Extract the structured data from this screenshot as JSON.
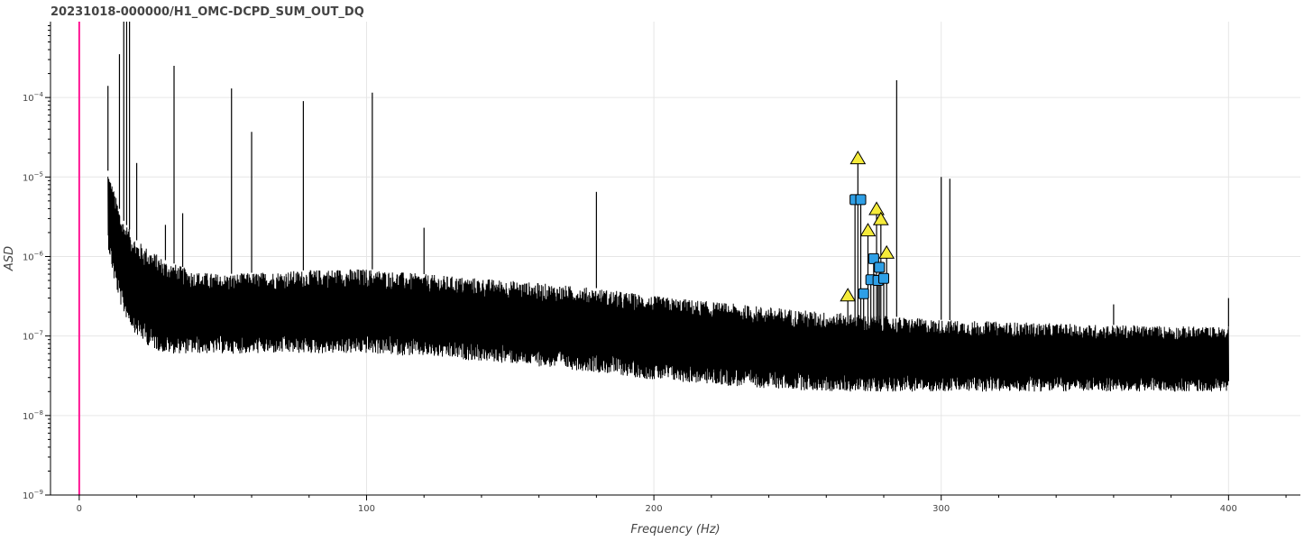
{
  "chart_data": {
    "type": "line",
    "title": "20231018-000000/H1_OMC-DCPD_SUM_OUT_DQ",
    "xlabel": "Frequency (Hz)",
    "ylabel": "ASD",
    "xlim": [
      -10,
      425
    ],
    "ylim": [
      1e-09,
      0.0009
    ],
    "y_scale": "log",
    "x_ticks": [
      {
        "value": 0,
        "label": "0"
      },
      {
        "value": 100,
        "label": "100"
      },
      {
        "value": 200,
        "label": "200"
      },
      {
        "value": 300,
        "label": "300"
      },
      {
        "value": 400,
        "label": "400"
      }
    ],
    "y_ticks": [
      {
        "value": 1e-09,
        "base": "10",
        "exp": "−9"
      },
      {
        "value": 1e-08,
        "base": "10",
        "exp": "−8"
      },
      {
        "value": 1e-07,
        "base": "10",
        "exp": "−7"
      },
      {
        "value": 1e-06,
        "base": "10",
        "exp": "−6"
      },
      {
        "value": 1e-05,
        "base": "10",
        "exp": "−5"
      },
      {
        "value": 0.0001,
        "base": "10",
        "exp": "−4"
      }
    ],
    "grid": true,
    "vertical_marker": {
      "x": 0,
      "color": "#ff1493"
    },
    "series": [
      {
        "color": "#000000",
        "x_range": [
          10,
          400
        ],
        "envelope_hz": [
          10,
          12,
          15,
          20,
          25,
          30,
          40,
          50,
          70,
          90,
          100,
          120,
          150,
          180,
          200,
          230,
          260,
          300,
          350,
          400
        ],
        "envelope_upper": [
          1.2e-05,
          7e-06,
          3e-06,
          1.6e-06,
          1.2e-06,
          9e-07,
          6.5e-07,
          6e-07,
          6.5e-07,
          7e-07,
          7e-07,
          6e-07,
          5e-07,
          4e-07,
          3.2e-07,
          2.5e-07,
          2e-07,
          1.6e-07,
          1.4e-07,
          1.3e-07
        ],
        "envelope_lower": [
          1.3e-06,
          5e-07,
          2e-07,
          1e-07,
          7e-08,
          6e-08,
          6e-08,
          6e-08,
          6e-08,
          6e-08,
          6e-08,
          5.5e-08,
          4.5e-08,
          3.5e-08,
          2.8e-08,
          2.3e-08,
          2e-08,
          2e-08,
          2e-08,
          2e-08
        ],
        "peaks": [
          {
            "x": 10,
            "y": 0.00014
          },
          {
            "x": 14,
            "y": 0.00035
          },
          {
            "x": 15.5,
            "y": 0.0009
          },
          {
            "x": 16.5,
            "y": 0.0009
          },
          {
            "x": 17.5,
            "y": 0.0009
          },
          {
            "x": 20,
            "y": 1.5e-05
          },
          {
            "x": 30,
            "y": 2.5e-06
          },
          {
            "x": 33,
            "y": 0.00025
          },
          {
            "x": 36,
            "y": 3.5e-06
          },
          {
            "x": 53,
            "y": 0.00013
          },
          {
            "x": 60,
            "y": 3.7e-05
          },
          {
            "x": 78,
            "y": 9e-05
          },
          {
            "x": 102,
            "y": 0.000115
          },
          {
            "x": 120,
            "y": 2.3e-06
          },
          {
            "x": 180,
            "y": 6.5e-06
          },
          {
            "x": 284.5,
            "y": 0.000165
          },
          {
            "x": 300,
            "y": 1e-05
          },
          {
            "x": 303,
            "y": 9.5e-06
          },
          {
            "x": 360,
            "y": 2.5e-07
          },
          {
            "x": 400,
            "y": 3e-07
          }
        ]
      }
    ],
    "markers": {
      "triangles": {
        "fill": "#f5eb3a",
        "points": [
          {
            "x": 267.5,
            "y": 3.2e-07
          },
          {
            "x": 271,
            "y": 1.7e-05
          },
          {
            "x": 274.5,
            "y": 2.1e-06
          },
          {
            "x": 277.5,
            "y": 3.9e-06
          },
          {
            "x": 279,
            "y": 2.9e-06
          },
          {
            "x": 281,
            "y": 1.1e-06
          }
        ]
      },
      "squares": {
        "fill": "#2e9fe6",
        "points": [
          {
            "x": 270,
            "y": 5.2e-06
          },
          {
            "x": 272,
            "y": 5.2e-06
          },
          {
            "x": 273,
            "y": 3.4e-07
          },
          {
            "x": 275.5,
            "y": 5.1e-07
          },
          {
            "x": 276.5,
            "y": 9.4e-07
          },
          {
            "x": 278,
            "y": 5e-07
          },
          {
            "x": 278.5,
            "y": 7.3e-07
          },
          {
            "x": 280,
            "y": 5.3e-07
          }
        ]
      }
    }
  }
}
